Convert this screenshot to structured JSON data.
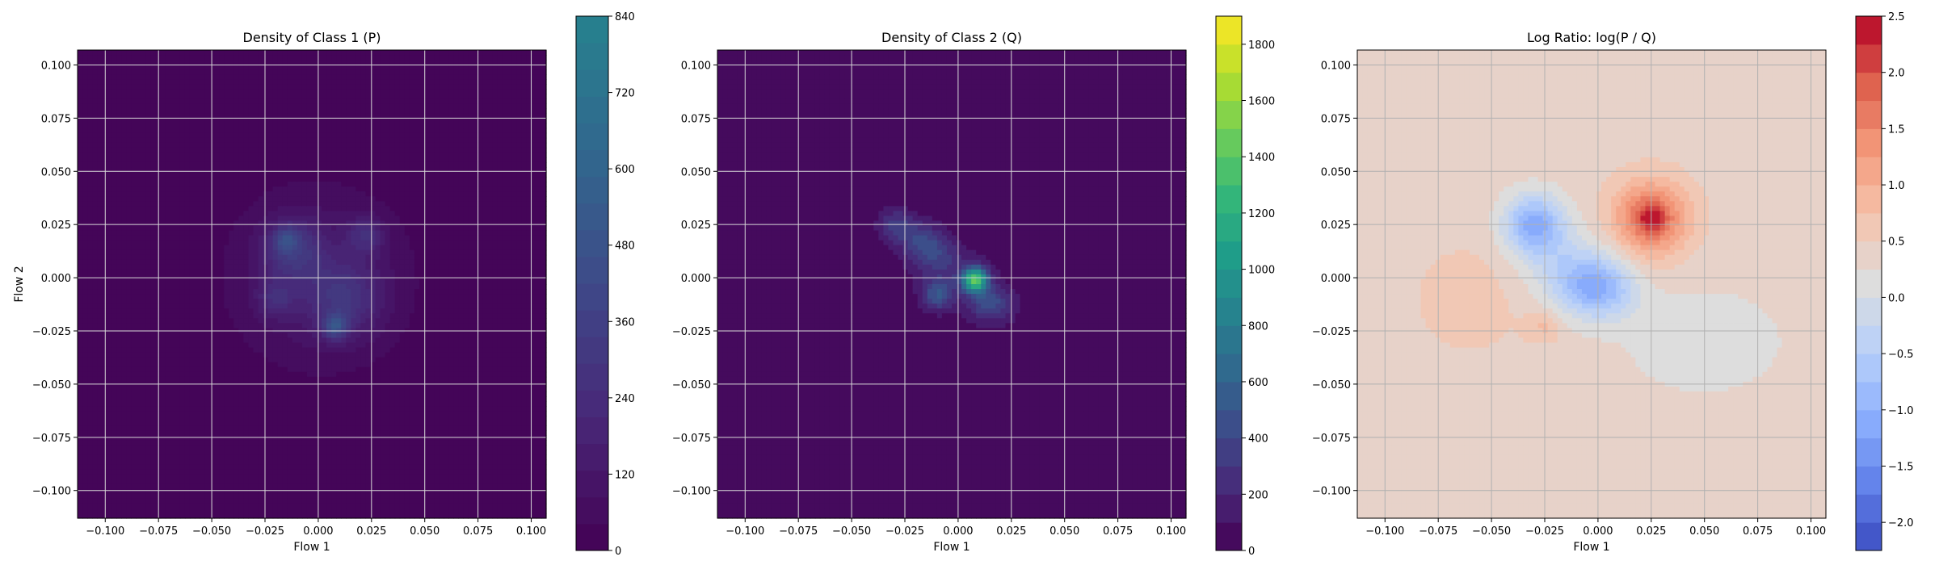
{
  "chart_data": [
    {
      "type": "heatmap",
      "subtype": "filled-contour",
      "title": "Density of Class 1 (P)",
      "xlabel": "Flow 1",
      "ylabel": "Flow 2",
      "xlim": [
        -0.113,
        0.107
      ],
      "ylim": [
        -0.113,
        0.107
      ],
      "xticks": [
        -0.1,
        -0.075,
        -0.05,
        -0.025,
        0.0,
        0.025,
        0.05,
        0.075,
        0.1
      ],
      "xtick_labels": [
        "−0.100",
        "−0.075",
        "−0.050",
        "−0.025",
        "0.000",
        "0.025",
        "0.050",
        "0.075",
        "0.100"
      ],
      "yticks": [
        -0.1,
        -0.075,
        -0.05,
        -0.025,
        0.0,
        0.025,
        0.05,
        0.075,
        0.1
      ],
      "ytick_labels": [
        "−0.100",
        "−0.075",
        "−0.050",
        "−0.025",
        "0.000",
        "0.025",
        "0.050",
        "0.075",
        "0.100"
      ],
      "grid": true,
      "colormap": "viridis",
      "colorbar": {
        "range": [
          0,
          840
        ],
        "colormap_top_value": 1900,
        "ticks": [
          0,
          120,
          240,
          360,
          480,
          600,
          720,
          840
        ],
        "tick_labels": [
          "0",
          "120",
          "240",
          "360",
          "480",
          "600",
          "720",
          "840"
        ],
        "levels": 20
      },
      "blobs": [
        {
          "x": 0.0,
          "y": 0.0,
          "sx": 0.03,
          "sy": 0.03,
          "value": 130
        },
        {
          "x": -0.012,
          "y": 0.013,
          "sx": 0.01,
          "sy": 0.01,
          "value": 220
        },
        {
          "x": 0.012,
          "y": -0.01,
          "sx": 0.012,
          "sy": 0.012,
          "value": 200
        },
        {
          "x": 0.008,
          "y": -0.023,
          "sx": 0.004,
          "sy": 0.004,
          "value": 330
        },
        {
          "x": -0.015,
          "y": 0.018,
          "sx": 0.004,
          "sy": 0.004,
          "value": 220
        },
        {
          "x": 0.022,
          "y": 0.02,
          "sx": 0.006,
          "sy": 0.006,
          "value": 180
        },
        {
          "x": -0.02,
          "y": -0.01,
          "sx": 0.006,
          "sy": 0.006,
          "value": 160
        }
      ]
    },
    {
      "type": "heatmap",
      "subtype": "filled-contour",
      "title": "Density of Class 2 (Q)",
      "xlabel": "Flow 1",
      "ylabel": "",
      "xlim": [
        -0.113,
        0.107
      ],
      "ylim": [
        -0.113,
        0.107
      ],
      "xticks": [
        -0.1,
        -0.075,
        -0.05,
        -0.025,
        0.0,
        0.025,
        0.05,
        0.075,
        0.1
      ],
      "xtick_labels": [
        "−0.100",
        "−0.075",
        "−0.050",
        "−0.025",
        "0.000",
        "0.025",
        "0.050",
        "0.075",
        "0.100"
      ],
      "yticks": [
        -0.1,
        -0.075,
        -0.05,
        -0.025,
        0.0,
        0.025,
        0.05,
        0.075,
        0.1
      ],
      "ytick_labels": [
        "−0.100",
        "−0.075",
        "−0.050",
        "−0.025",
        "0.000",
        "0.025",
        "0.050",
        "0.075",
        "0.100"
      ],
      "grid": true,
      "colormap": "viridis",
      "colorbar": {
        "range": [
          0,
          1900
        ],
        "ticks": [
          0,
          200,
          400,
          600,
          800,
          1000,
          1200,
          1400,
          1600,
          1800
        ],
        "tick_labels": [
          "0",
          "200",
          "400",
          "600",
          "800",
          "1000",
          "1200",
          "1400",
          "1600",
          "1800"
        ],
        "levels": 19
      },
      "blobs": [
        {
          "x": 0.0,
          "y": 0.0,
          "sx": 0.028,
          "sy": 0.012,
          "rot": -38,
          "value": 170
        },
        {
          "x": -0.015,
          "y": 0.015,
          "sx": 0.01,
          "sy": 0.006,
          "rot": -38,
          "value": 350
        },
        {
          "x": 0.008,
          "y": -0.001,
          "sx": 0.004,
          "sy": 0.004,
          "value": 1300
        },
        {
          "x": -0.01,
          "y": -0.008,
          "sx": 0.005,
          "sy": 0.005,
          "value": 420
        },
        {
          "x": 0.015,
          "y": -0.012,
          "sx": 0.006,
          "sy": 0.005,
          "value": 350
        },
        {
          "x": -0.03,
          "y": 0.025,
          "sx": 0.005,
          "sy": 0.005,
          "value": 220
        }
      ]
    },
    {
      "type": "heatmap",
      "subtype": "filled-contour",
      "title": "Log Ratio: log(P / Q)",
      "xlabel": "Flow 1",
      "ylabel": "",
      "xlim": [
        -0.113,
        0.107
      ],
      "ylim": [
        -0.113,
        0.107
      ],
      "xticks": [
        -0.1,
        -0.075,
        -0.05,
        -0.025,
        0.0,
        0.025,
        0.05,
        0.075,
        0.1
      ],
      "xtick_labels": [
        "−0.100",
        "−0.075",
        "−0.050",
        "−0.025",
        "0.000",
        "0.025",
        "0.050",
        "0.075",
        "0.100"
      ],
      "yticks": [
        -0.1,
        -0.075,
        -0.05,
        -0.025,
        0.0,
        0.025,
        0.05,
        0.075,
        0.1
      ],
      "ytick_labels": [
        "−0.100",
        "−0.075",
        "−0.050",
        "−0.025",
        "0.000",
        "0.025",
        "0.050",
        "0.075",
        "0.100"
      ],
      "grid": true,
      "colormap": "coolwarm",
      "colorbar": {
        "range": [
          -2.25,
          2.5
        ],
        "ticks": [
          -2.0,
          -1.5,
          -1.0,
          -0.5,
          0.0,
          0.5,
          1.0,
          1.5,
          2.0,
          2.5
        ],
        "tick_labels": [
          "−2.0",
          "−1.5",
          "−1.0",
          "−0.5",
          "0.0",
          "0.5",
          "1.0",
          "1.5",
          "2.0",
          "2.5"
        ],
        "levels": 19
      },
      "background_value": 0.4,
      "blobs": [
        {
          "x": 0.025,
          "y": 0.028,
          "sx": 0.012,
          "sy": 0.012,
          "value": 1.5
        },
        {
          "x": 0.025,
          "y": 0.028,
          "sx": 0.004,
          "sy": 0.004,
          "value": 0.8
        },
        {
          "x": -0.03,
          "y": 0.025,
          "sx": 0.01,
          "sy": 0.01,
          "value": -1.5
        },
        {
          "x": 0.0,
          "y": -0.005,
          "sx": 0.012,
          "sy": 0.01,
          "value": -1.3
        },
        {
          "x": -0.015,
          "y": 0.005,
          "sx": 0.014,
          "sy": 0.012,
          "value": -0.6
        },
        {
          "x": -0.025,
          "y": -0.023,
          "sx": 0.006,
          "sy": 0.005,
          "value": 0.4
        },
        {
          "x": 0.05,
          "y": -0.03,
          "sx": 0.03,
          "sy": 0.02,
          "value": -0.3
        },
        {
          "x": -0.06,
          "y": -0.01,
          "sx": 0.02,
          "sy": 0.02,
          "value": 0.2
        }
      ]
    }
  ]
}
